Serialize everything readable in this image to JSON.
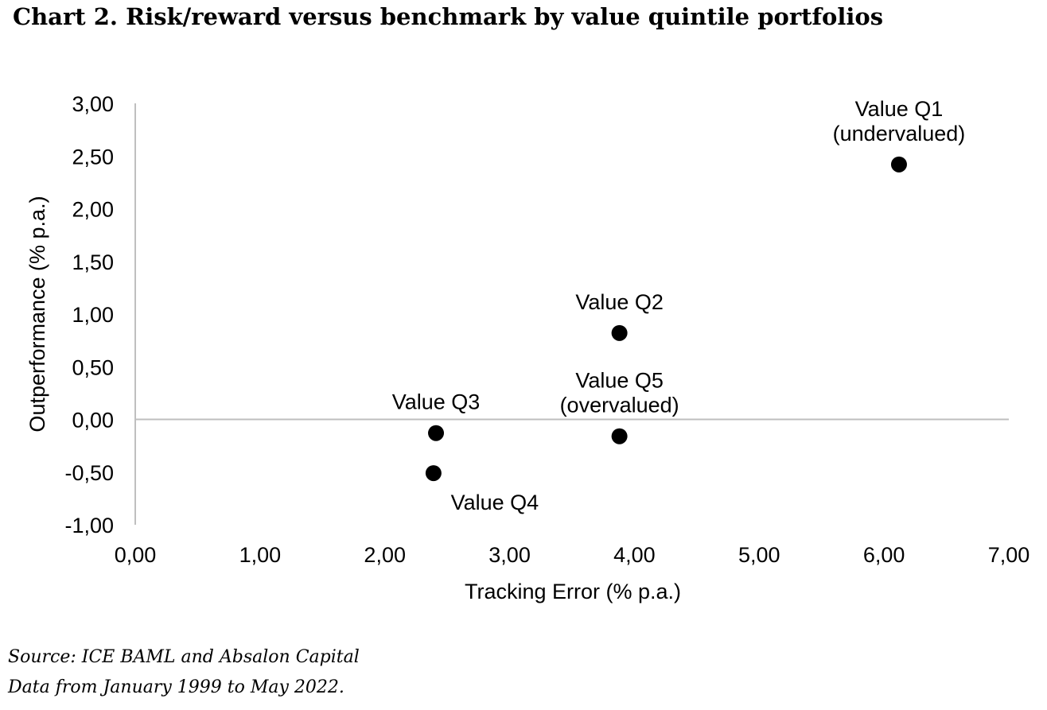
{
  "title": "Chart 2. Risk/reward versus benchmark by value quintile portfolios",
  "source_line1": "Source: ICE BAML and Absalon Capital",
  "source_line2": "Data from January 1999 to May 2022.",
  "chart_data": {
    "type": "scatter",
    "xlabel": "Tracking Error (% p.a.)",
    "ylabel": "Outperformance (% p.a.)",
    "xlim": [
      0,
      7
    ],
    "ylim": [
      -1,
      3
    ],
    "x_ticks": [
      "0,00",
      "1,00",
      "2,00",
      "3,00",
      "4,00",
      "5,00",
      "6,00",
      "7,00"
    ],
    "y_ticks": [
      "-1,00",
      "-0,50",
      "0,00",
      "0,50",
      "1,00",
      "1,50",
      "2,00",
      "2,50",
      "3,00"
    ],
    "grid": false,
    "marker_color": "#000000",
    "axis_color": "#bfbfbf",
    "points": [
      {
        "label": [
          "Value Q1",
          "(undervalued)"
        ],
        "x": 6.12,
        "y": 2.42,
        "label_pos": "above"
      },
      {
        "label": [
          "Value Q2"
        ],
        "x": 3.88,
        "y": 0.82,
        "label_pos": "above"
      },
      {
        "label": [
          "Value Q3"
        ],
        "x": 2.41,
        "y": -0.13,
        "label_pos": "above"
      },
      {
        "label": [
          "Value Q4"
        ],
        "x": 2.39,
        "y": -0.51,
        "label_pos": "below-right"
      },
      {
        "label": [
          "Value Q5",
          "(overvalued)"
        ],
        "x": 3.88,
        "y": -0.16,
        "label_pos": "above"
      }
    ]
  }
}
